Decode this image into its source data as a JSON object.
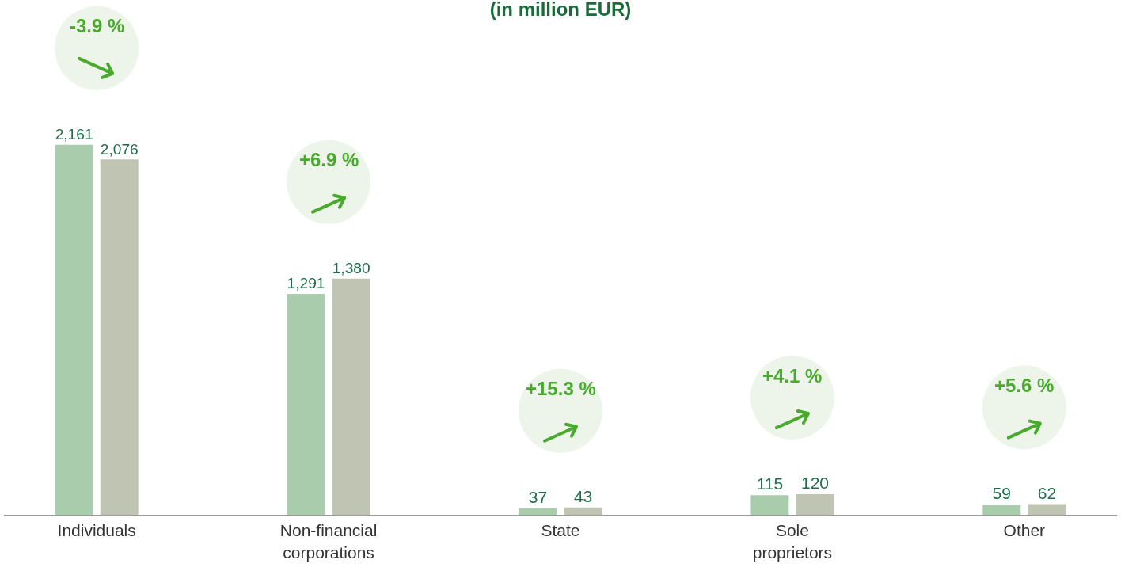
{
  "chart_data": {
    "type": "bar",
    "title": "(in million EUR)",
    "categories": [
      "Individuals",
      "Non-financial corporations",
      "State",
      "Sole proprietors",
      "Other"
    ],
    "series": [
      {
        "color": "#a8ccac",
        "values": [
          2161,
          1291,
          37,
          115,
          59
        ],
        "value_labels": [
          "2,161",
          "1,291",
          "37",
          "115",
          "59"
        ]
      },
      {
        "color": "#c0c4b2",
        "values": [
          2076,
          1380,
          43,
          120,
          62
        ],
        "value_labels": [
          "2,076",
          "1,380",
          "43",
          "120",
          "62"
        ]
      }
    ],
    "tick_labels": "x",
    "annotations": [
      "-3.9 %",
      "+6.9 %",
      "+15.3 %",
      "+4.1 %",
      "+5.6 %"
    ]
  }
}
